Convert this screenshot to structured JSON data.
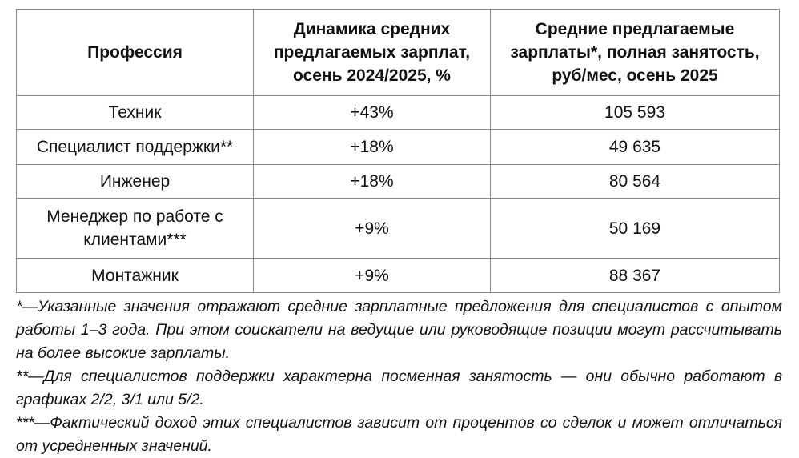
{
  "table": {
    "headers": [
      "Профессия",
      "Динамика средних предлагаемых зарплат, осень 2024/2025, %",
      "Средние предлагаемые зарплаты*, полная занятость, руб/мес, осень 2025"
    ],
    "rows": [
      {
        "profession": "Техник",
        "change": "+43%",
        "salary": "105 593"
      },
      {
        "profession": "Специалист поддержки**",
        "change": "+18%",
        "salary": "49 635"
      },
      {
        "profession": "Инженер",
        "change": "+18%",
        "salary": "80 564"
      },
      {
        "profession": "Менеджер по работе с клиентами***",
        "change": "+9%",
        "salary": "50 169"
      },
      {
        "profession": "Монтажник",
        "change": "+9%",
        "salary": "88 367"
      }
    ]
  },
  "footnotes": [
    "*—Указанные значения отражают средние зарплатные предложения для специалистов с опытом работы 1–3 года. При этом соискатели на ведущие или руководящие позиции могут рассчитывать на более высокие зарплаты.",
    "**—Для специалистов поддержки характерна посменная занятость — они обычно работают в графиках 2/2, 3/1 или 5/2.",
    "***—Фактический доход этих специалистов зависит от процентов со сделок и может отличаться от усредненных значений."
  ]
}
